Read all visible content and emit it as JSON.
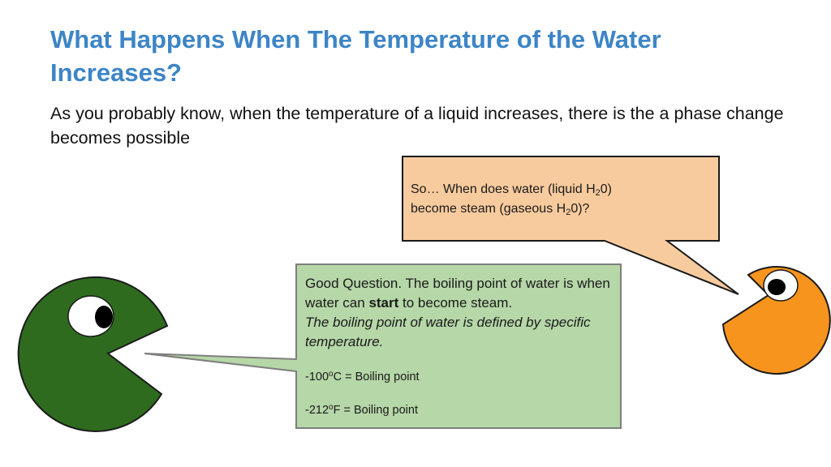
{
  "slide": {
    "title": "What Happens When The Temperature of the Water Increases?",
    "intro": "As you probably know, when the temperature of a liquid increases, there is the a phase change becomes possible"
  },
  "question_bubble": {
    "line1_pre": "So… When does water (liquid H",
    "sub1": "2",
    "line1_post": "0)",
    "line2_pre": "become steam (gaseous H",
    "sub2": "2",
    "line2_post": "0)?"
  },
  "answer_bubble": {
    "text_pre": "Good Question. The boiling point of water is when water can ",
    "text_bold": "start",
    "text_post": " to become steam.",
    "definition": "The boiling point of water is defined by specific temperature.",
    "celsius_pre": "-100",
    "celsius_sup": "o",
    "celsius_post": "C = Boiling point",
    "fahrenheit_pre": "-212",
    "fahrenheit_sup": "o",
    "fahrenheit_post": "F = Boiling point"
  },
  "colors": {
    "title": "#3d85c6",
    "green_character": "#2e6b1f",
    "orange_character": "#f7941d",
    "question_bubble_fill": "#f8cb9e",
    "answer_bubble_fill": "#b6d7a8"
  },
  "icons": {
    "left_character": "green-pacman-icon",
    "right_character": "orange-pacman-icon"
  }
}
